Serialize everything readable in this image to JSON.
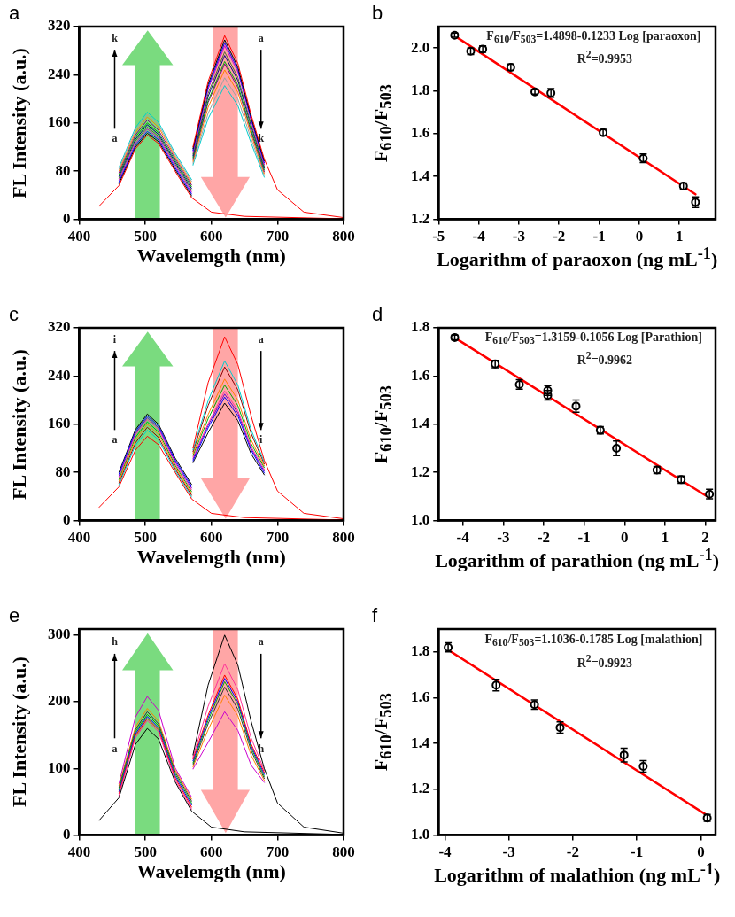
{
  "chart_data": [
    {
      "type": "line",
      "title": "a",
      "xlabel": "Wavelemgth (nm)",
      "ylabel": "FL Intensity (a.u.)",
      "xlim": [
        400,
        800
      ],
      "xticks": [
        400,
        500,
        600,
        700,
        800
      ],
      "ylim": [
        0,
        320
      ],
      "yticks": [
        0,
        80,
        160,
        240,
        320
      ],
      "annotations": [
        "k",
        "a",
        "a",
        "k"
      ],
      "series": [
        {
          "color": "#ff0000",
          "x": [
            430,
            460,
            485,
            503,
            520,
            545,
            570,
            600,
            650,
            800
          ],
          "values": [
            22,
            56,
            117,
            140,
            126,
            80,
            36,
            12,
            5,
            1
          ]
        },
        {
          "color": "#ff0000",
          "x": [
            572,
            595,
            620,
            640,
            660,
            680,
            700,
            740,
            800
          ],
          "values": [
            120,
            229,
            305,
            259,
            174,
            100,
            49,
            12,
            3
          ]
        },
        {
          "color": "#000000",
          "x": [
            460,
            485,
            503,
            520,
            545,
            570
          ],
          "values": [
            59,
            120,
            143,
            129,
            83,
            39
          ]
        },
        {
          "color": "#000000",
          "x": [
            572,
            595,
            620,
            640,
            660,
            680
          ],
          "values": [
            117,
            224,
            298,
            253,
            170,
            97
          ]
        },
        {
          "color": "#0000ff",
          "x": [
            460,
            485,
            503,
            520,
            545,
            570
          ],
          "values": [
            62,
            123,
            146,
            132,
            86,
            42
          ]
        },
        {
          "color": "#0000ff",
          "x": [
            572,
            595,
            620,
            640,
            660,
            680
          ],
          "values": [
            114,
            220,
            293,
            249,
            167,
            94
          ]
        },
        {
          "color": "#cc00cc",
          "x": [
            460,
            485,
            503,
            520,
            545,
            570
          ],
          "values": [
            65,
            126,
            150,
            135,
            89,
            45
          ]
        },
        {
          "color": "#cc00cc",
          "x": [
            572,
            595,
            620,
            640,
            660,
            680
          ],
          "values": [
            111,
            216,
            288,
            245,
            164,
            91
          ]
        },
        {
          "color": "#556b2f",
          "x": [
            460,
            485,
            503,
            520,
            545,
            570
          ],
          "values": [
            68,
            130,
            153,
            138,
            92,
            48
          ]
        },
        {
          "color": "#556b2f",
          "x": [
            572,
            595,
            620,
            640,
            660,
            680
          ],
          "values": [
            108,
            209,
            278,
            236,
            158,
            88
          ]
        },
        {
          "color": "#000080",
          "x": [
            460,
            485,
            503,
            520,
            545,
            570
          ],
          "values": [
            71,
            133,
            157,
            141,
            95,
            51
          ]
        },
        {
          "color": "#000080",
          "x": [
            572,
            595,
            620,
            640,
            660,
            680
          ],
          "values": [
            105,
            204,
            272,
            231,
            155,
            85
          ]
        },
        {
          "color": "#00aa00",
          "x": [
            460,
            485,
            503,
            520,
            545,
            570
          ],
          "values": [
            74,
            137,
            160,
            144,
            98,
            54
          ]
        },
        {
          "color": "#00aa00",
          "x": [
            572,
            595,
            620,
            640,
            660,
            680
          ],
          "values": [
            102,
            197,
            262,
            223,
            149,
            82
          ]
        },
        {
          "color": "#800080",
          "x": [
            460,
            485,
            503,
            520,
            545,
            570
          ],
          "values": [
            77,
            140,
            165,
            148,
            101,
            57
          ]
        },
        {
          "color": "#800080",
          "x": [
            572,
            595,
            620,
            640,
            660,
            680
          ],
          "values": [
            99,
            194,
            258,
            219,
            146,
            79
          ]
        },
        {
          "color": "#ff8000",
          "x": [
            460,
            485,
            503,
            520,
            545,
            570
          ],
          "values": [
            80,
            144,
            170,
            153,
            104,
            60
          ]
        },
        {
          "color": "#ff8000",
          "x": [
            572,
            595,
            620,
            640,
            660,
            680
          ],
          "values": [
            96,
            186,
            248,
            211,
            141,
            76
          ]
        },
        {
          "color": "#a0a0a0",
          "x": [
            460,
            485,
            503,
            520,
            545,
            570
          ],
          "values": [
            83,
            148,
            174,
            157,
            107,
            63
          ]
        },
        {
          "color": "#a0a0a0",
          "x": [
            572,
            595,
            620,
            640,
            660,
            680
          ],
          "values": [
            93,
            176,
            235,
            200,
            134,
            73
          ]
        },
        {
          "color": "#00cccc",
          "x": [
            460,
            485,
            503,
            520,
            545,
            570
          ],
          "values": [
            86,
            152,
            178,
            161,
            110,
            66
          ]
        },
        {
          "color": "#00cccc",
          "x": [
            572,
            595,
            620,
            640,
            660,
            680
          ],
          "values": [
            90,
            167,
            222,
            189,
            127,
            70
          ]
        }
      ]
    },
    {
      "type": "scatter",
      "title": "b",
      "xlabel": "Logarithm of paraoxon (ng mL$^{-1}$)",
      "ylabel": "F$_{610}$/F$_{503}$",
      "xlim": [
        -5,
        1.9
      ],
      "xticks": [
        -5,
        -4,
        -3,
        -2,
        -1,
        0,
        1
      ],
      "ylim": [
        1.2,
        2.1
      ],
      "yticks": [
        {
          "value": 1.2,
          "label": "1.2"
        },
        {
          "value": 1.4,
          "label": "1.4"
        },
        {
          "value": 1.6,
          "label": "1.6"
        },
        {
          "value": 1.8,
          "label": "1.8"
        },
        {
          "value": 2,
          "label": "2.0"
        }
      ],
      "annotations": [
        "F$_{610}$/F$_{503}$=1.4898-0.1233 Log [paraoxon]",
        "R$^{2}$=0.9953"
      ],
      "series": [
        {
          "type": "scatter",
          "color": "#000000",
          "marker": "circle",
          "x": [
            -4.6,
            -4.2,
            -3.9,
            -3.2,
            -2.6,
            -2.2,
            -0.9,
            0.1,
            1.1,
            1.4
          ],
          "values": [
            2.06,
            1.985,
            1.995,
            1.91,
            1.795,
            1.79,
            1.605,
            1.485,
            1.355,
            1.28
          ],
          "errors": [
            0.01,
            0.015,
            0.015,
            0.015,
            0.01,
            0.02,
            0.015,
            0.02,
            0.015,
            0.025
          ]
        },
        {
          "type": "line",
          "color": "#ff0000",
          "x": [
            -4.6,
            1.4
          ],
          "values": [
            2.057,
            1.317
          ]
        }
      ]
    },
    {
      "type": "line",
      "title": "c",
      "xlabel": "Wavelemgth (nm)",
      "ylabel": "FL Intensity (a.u.)",
      "xlim": [
        400,
        800
      ],
      "xticks": [
        400,
        500,
        600,
        700,
        800
      ],
      "ylim": [
        0,
        320
      ],
      "yticks": [
        0,
        80,
        160,
        240,
        320
      ],
      "annotations": [
        "i",
        "a",
        "a",
        "i"
      ],
      "series": [
        {
          "color": "#ff0000",
          "x": [
            430,
            460,
            485,
            503,
            520,
            545,
            570,
            600,
            650,
            800
          ],
          "values": [
            22,
            56,
            117,
            140,
            126,
            80,
            36,
            12,
            5,
            1
          ]
        },
        {
          "color": "#ff0000",
          "x": [
            572,
            595,
            620,
            640,
            660,
            680,
            700,
            740,
            800
          ],
          "values": [
            120,
            229,
            305,
            259,
            174,
            100,
            49,
            12,
            3
          ]
        },
        {
          "color": "#00cccc",
          "x": [
            460,
            485,
            503,
            520,
            545,
            570
          ],
          "values": [
            59,
            125,
            150,
            134,
            83,
            39
          ]
        },
        {
          "color": "#00cccc",
          "x": [
            572,
            595,
            620,
            640,
            660,
            680
          ],
          "values": [
            117,
            199,
            265,
            225,
            151,
            97
          ]
        },
        {
          "color": "#8b0000",
          "x": [
            460,
            485,
            503,
            520,
            545,
            570
          ],
          "values": [
            62,
            129,
            155,
            138,
            86,
            42
          ]
        },
        {
          "color": "#8b0000",
          "x": [
            572,
            595,
            620,
            640,
            660,
            680
          ],
          "values": [
            114,
            191,
            255,
            217,
            145,
            94
          ]
        },
        {
          "color": "#ff8000",
          "x": [
            460,
            485,
            503,
            520,
            545,
            570
          ],
          "values": [
            65,
            134,
            160,
            143,
            89,
            45
          ]
        },
        {
          "color": "#ff8000",
          "x": [
            572,
            595,
            620,
            640,
            660,
            680
          ],
          "values": [
            111,
            176,
            235,
            200,
            134,
            91
          ]
        },
        {
          "color": "#00aa00",
          "x": [
            460,
            485,
            503,
            520,
            545,
            570
          ],
          "values": [
            68,
            138,
            164,
            147,
            92,
            48
          ]
        },
        {
          "color": "#00aa00",
          "x": [
            572,
            595,
            620,
            640,
            660,
            680
          ],
          "values": [
            108,
            169,
            225,
            191,
            128,
            88
          ]
        },
        {
          "color": "#ff3399",
          "x": [
            460,
            485,
            503,
            520,
            545,
            570
          ],
          "values": [
            71,
            142,
            168,
            151,
            95,
            51
          ]
        },
        {
          "color": "#ff3399",
          "x": [
            572,
            595,
            620,
            640,
            660,
            680
          ],
          "values": [
            105,
            161,
            215,
            183,
            123,
            85
          ]
        },
        {
          "color": "#6600cc",
          "x": [
            460,
            485,
            503,
            520,
            545,
            570
          ],
          "values": [
            74,
            145,
            171,
            154,
            98,
            54
          ]
        },
        {
          "color": "#6600cc",
          "x": [
            572,
            595,
            620,
            640,
            660,
            680
          ],
          "values": [
            102,
            158,
            210,
            179,
            120,
            82
          ]
        },
        {
          "color": "#0000ff",
          "x": [
            460,
            485,
            503,
            520,
            545,
            570
          ],
          "values": [
            77,
            148,
            174,
            157,
            101,
            57
          ]
        },
        {
          "color": "#0000ff",
          "x": [
            572,
            595,
            620,
            640,
            660,
            680
          ],
          "values": [
            99,
            154,
            205,
            174,
            117,
            79
          ]
        },
        {
          "color": "#000000",
          "x": [
            460,
            485,
            503,
            520,
            545,
            570
          ],
          "values": [
            80,
            151,
            177,
            160,
            104,
            60
          ]
        },
        {
          "color": "#000000",
          "x": [
            572,
            595,
            620,
            640,
            660,
            680
          ],
          "values": [
            96,
            146,
            195,
            166,
            111,
            76
          ]
        }
      ]
    },
    {
      "type": "scatter",
      "title": "d",
      "xlabel": "Logarithm of parathion (ng mL$^{-1}$)",
      "ylabel": "F$_{610}$/F$_{503}$",
      "xlim": [
        -4.6,
        2.25
      ],
      "xticks": [
        -4,
        -3,
        -2,
        -1,
        0,
        1,
        2
      ],
      "ylim": [
        1,
        1.8
      ],
      "yticks": [
        {
          "value": 1,
          "label": "1.0"
        },
        {
          "value": 1.2,
          "label": "1.2"
        },
        {
          "value": 1.4,
          "label": "1.4"
        },
        {
          "value": 1.6,
          "label": "1.6"
        },
        {
          "value": 1.8,
          "label": "1.8"
        }
      ],
      "annotations": [
        "F$_{610}$/F$_{503}$=1.3159-0.1056 Log [Parathion]",
        "R$^{2}$=0.9962"
      ],
      "series": [
        {
          "type": "scatter",
          "color": "#000000",
          "marker": "circle",
          "x": [
            -4.2,
            -3.2,
            -2.6,
            -1.9,
            -1.9,
            -1.2,
            -0.6,
            -0.2,
            0.8,
            1.4,
            2.1
          ],
          "values": [
            1.76,
            1.65,
            1.565,
            1.52,
            1.54,
            1.475,
            1.375,
            1.3,
            1.21,
            1.17,
            1.11
          ],
          "errors": [
            0.01,
            0.015,
            0.02,
            0.02,
            0.02,
            0.025,
            0.015,
            0.03,
            0.015,
            0.015,
            0.02
          ]
        },
        {
          "type": "line",
          "color": "#ff0000",
          "x": [
            -4.2,
            2.1
          ],
          "values": [
            1.759,
            1.094
          ]
        }
      ]
    },
    {
      "type": "line",
      "title": "e",
      "xlabel": "Wavelemgth (nm)",
      "ylabel": "FL Intensity (a.u.)",
      "xlim": [
        400,
        800
      ],
      "xticks": [
        400,
        500,
        600,
        700,
        800
      ],
      "ylim": [
        0,
        309
      ],
      "yticks": [
        0,
        100,
        200,
        300
      ],
      "annotations": [
        "h",
        "a",
        "a",
        "h"
      ],
      "series": [
        {
          "color": "#000000",
          "x": [
            430,
            460,
            485,
            503,
            520,
            545,
            570,
            600,
            650,
            800
          ],
          "values": [
            22,
            56,
            136,
            160,
            144,
            80,
            36,
            12,
            5,
            1
          ]
        },
        {
          "color": "#000000",
          "x": [
            572,
            595,
            620,
            640,
            660,
            680,
            700,
            740,
            800
          ],
          "values": [
            120,
            225,
            300,
            255,
            171,
            100,
            48,
            12,
            3
          ]
        },
        {
          "color": "#ff3399",
          "x": [
            460,
            485,
            503,
            520,
            545,
            570
          ],
          "values": [
            59,
            146,
            172,
            155,
            83,
            39
          ]
        },
        {
          "color": "#ff3399",
          "x": [
            572,
            595,
            620,
            640,
            660,
            680
          ],
          "values": [
            117,
            193,
            257,
            218,
            146,
            97
          ]
        },
        {
          "color": "#ff0000",
          "x": [
            460,
            485,
            503,
            520,
            545,
            570
          ],
          "values": [
            62,
            149,
            175,
            158,
            86,
            42
          ]
        },
        {
          "color": "#ff0000",
          "x": [
            572,
            595,
            620,
            640,
            660,
            680
          ],
          "values": [
            114,
            180,
            240,
            204,
            137,
            94
          ]
        },
        {
          "color": "#0000ff",
          "x": [
            460,
            485,
            503,
            520,
            545,
            570
          ],
          "values": [
            65,
            152,
            178,
            161,
            89,
            45
          ]
        },
        {
          "color": "#0000ff",
          "x": [
            572,
            595,
            620,
            640,
            660,
            680
          ],
          "values": [
            111,
            176,
            235,
            200,
            134,
            91
          ]
        },
        {
          "color": "#00aa00",
          "x": [
            460,
            485,
            503,
            520,
            545,
            570
          ],
          "values": [
            68,
            155,
            181,
            164,
            92,
            48
          ]
        },
        {
          "color": "#00aa00",
          "x": [
            572,
            595,
            620,
            640,
            660,
            680
          ],
          "values": [
            108,
            172,
            230,
            196,
            131,
            88
          ]
        },
        {
          "color": "#333333",
          "x": [
            460,
            485,
            503,
            520,
            545,
            570
          ],
          "values": [
            71,
            158,
            185,
            167,
            95,
            51
          ]
        },
        {
          "color": "#333333",
          "x": [
            572,
            595,
            620,
            640,
            660,
            680
          ],
          "values": [
            105,
            167,
            222,
            189,
            127,
            85
          ]
        },
        {
          "color": "#ff8000",
          "x": [
            460,
            485,
            503,
            520,
            545,
            570
          ],
          "values": [
            74,
            162,
            190,
            171,
            98,
            54
          ]
        },
        {
          "color": "#ff8000",
          "x": [
            572,
            595,
            620,
            640,
            660,
            680
          ],
          "values": [
            102,
            158,
            210,
            179,
            120,
            82
          ]
        },
        {
          "color": "#cc00cc",
          "x": [
            460,
            485,
            503,
            520,
            545,
            570
          ],
          "values": [
            77,
            177,
            208,
            187,
            101,
            57
          ]
        },
        {
          "color": "#cc00cc",
          "x": [
            572,
            595,
            620,
            640,
            660,
            680
          ],
          "values": [
            99,
            139,
            185,
            157,
            105,
            79
          ]
        }
      ]
    },
    {
      "type": "scatter",
      "title": "f",
      "xlabel": "Logarithm of malathion (ng mL$^{-1}$)",
      "ylabel": "F$_{610}$/F$_{503}$",
      "xlim": [
        -4.1,
        0.23
      ],
      "xticks": [
        -4,
        -3,
        -2,
        -1,
        0
      ],
      "ylim": [
        1,
        1.9
      ],
      "yticks": [
        {
          "value": 1,
          "label": "1.0"
        },
        {
          "value": 1.2,
          "label": "1.2"
        },
        {
          "value": 1.4,
          "label": "1.4"
        },
        {
          "value": 1.6,
          "label": "1.6"
        },
        {
          "value": 1.8,
          "label": "1.8"
        }
      ],
      "annotations": [
        "F$_{610}$/F$_{503}$=1.1036-0.1785 Log [malathion]",
        "R$^{2}$=0.9923"
      ],
      "series": [
        {
          "type": "scatter",
          "color": "#000000",
          "marker": "circle",
          "x": [
            -3.95,
            -3.2,
            -2.6,
            -2.2,
            -1.2,
            -0.9,
            0.1
          ],
          "values": [
            1.82,
            1.655,
            1.57,
            1.47,
            1.35,
            1.3,
            1.075
          ],
          "errors": [
            0.02,
            0.025,
            0.02,
            0.025,
            0.03,
            0.025,
            0.015
          ]
        },
        {
          "type": "line",
          "color": "#ff0000",
          "x": [
            -3.95,
            0.1
          ],
          "values": [
            1.809,
            1.086
          ]
        }
      ]
    }
  ]
}
